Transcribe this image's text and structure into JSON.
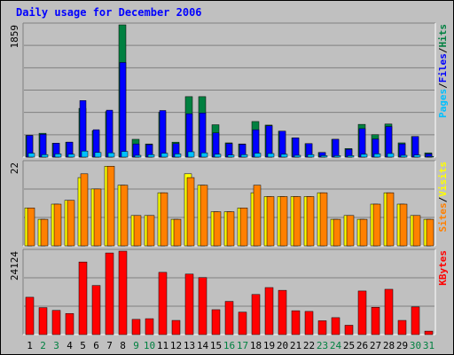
{
  "chart_data": {
    "type": "bar",
    "title": "Daily usage for December 2006",
    "categories": [
      "1",
      "2",
      "3",
      "4",
      "5",
      "6",
      "7",
      "8",
      "9",
      "10",
      "11",
      "12",
      "13",
      "14",
      "15",
      "16",
      "17",
      "18",
      "19",
      "20",
      "21",
      "22",
      "23",
      "24",
      "25",
      "26",
      "27",
      "28",
      "29",
      "30",
      "31"
    ],
    "weekend_days": [
      "2",
      "3",
      "9",
      "10",
      "16",
      "17",
      "23",
      "24",
      "30",
      "31"
    ],
    "colors": {
      "hits": "#008040",
      "files": "#0000ff",
      "pages": "#00c0ff",
      "visits": "#ffff00",
      "sites": "#ff8000",
      "kbytes": "#ff0000",
      "weekday_label": "#000000",
      "weekend_label": "#008040"
    },
    "panels": [
      {
        "id": "hits-files-pages",
        "ymax": 1859,
        "ymax_label": "1859",
        "legend": [
          {
            "text": "Pages",
            "color": "#00c0ff"
          },
          {
            "text": "/",
            "color": "#000000"
          },
          {
            "text": "Files",
            "color": "#0000ff"
          },
          {
            "text": "/",
            "color": "#000000"
          },
          {
            "text": "Hits",
            "color": "#008040"
          }
        ],
        "series": [
          {
            "name": "Hits",
            "color": "#008040",
            "values": [
              305,
              335,
              195,
              210,
              685,
              370,
              640,
              1859,
              250,
              185,
              630,
              210,
              850,
              850,
              455,
              200,
              185,
              500,
              450,
              365,
              270,
              190,
              65,
              250,
              120,
              460,
              315,
              465,
              200,
              290,
              60
            ]
          },
          {
            "name": "Files",
            "color": "#0000ff",
            "values": [
              305,
              320,
              195,
              210,
              795,
              385,
              660,
              1330,
              185,
              175,
              655,
              190,
              610,
              620,
              340,
              190,
              180,
              385,
              440,
              365,
              270,
              190,
              65,
              250,
              110,
              400,
              255,
              430,
              185,
              290,
              45
            ]
          },
          {
            "name": "Pages",
            "color": "#00c0ff",
            "values": [
              55,
              35,
              45,
              40,
              85,
              65,
              60,
              80,
              25,
              35,
              55,
              45,
              75,
              60,
              40,
              30,
              35,
              55,
              50,
              40,
              25,
              35,
              20,
              20,
              20,
              40,
              45,
              50,
              25,
              30,
              10
            ]
          }
        ]
      },
      {
        "id": "visits-sites",
        "ymax": 22,
        "ymax_label": "22",
        "legend": [
          {
            "text": "Sites",
            "color": "#ff8000"
          },
          {
            "text": "/",
            "color": "#000000"
          },
          {
            "text": "Visits",
            "color": "#ffff00"
          }
        ],
        "series": [
          {
            "name": "Visits",
            "color": "#ffff00",
            "values": [
              10,
              7,
              11,
              12,
              18,
              15,
              21,
              16,
              8,
              8,
              14,
              7,
              19,
              16,
              9,
              9,
              10,
              14,
              13,
              13,
              13,
              13,
              14,
              7,
              8,
              7,
              11,
              14,
              11,
              8,
              7
            ]
          },
          {
            "name": "Sites",
            "color": "#ff8000",
            "values": [
              10,
              7,
              11,
              12,
              19,
              15,
              21,
              16,
              8,
              8,
              14,
              7,
              18,
              16,
              9,
              9,
              10,
              16,
              13,
              13,
              13,
              13,
              14,
              7,
              8,
              7,
              11,
              14,
              11,
              8,
              7
            ]
          }
        ]
      },
      {
        "id": "kbytes",
        "ymax": 24124,
        "ymax_label": "24124",
        "legend": [
          {
            "text": "KBytes",
            "color": "#ff0000"
          }
        ],
        "series": [
          {
            "name": "KBytes",
            "color": "#ff0000",
            "values": [
              10800,
              7800,
              7000,
              6100,
              21000,
              14200,
              23600,
              24124,
              4400,
              4600,
              18000,
              4100,
              17500,
              16500,
              7200,
              9600,
              6500,
              11600,
              13600,
              12800,
              6900,
              6700,
              4000,
              4900,
              2700,
              12600,
              7900,
              13100,
              4100,
              8000,
              1000
            ]
          }
        ]
      }
    ]
  }
}
